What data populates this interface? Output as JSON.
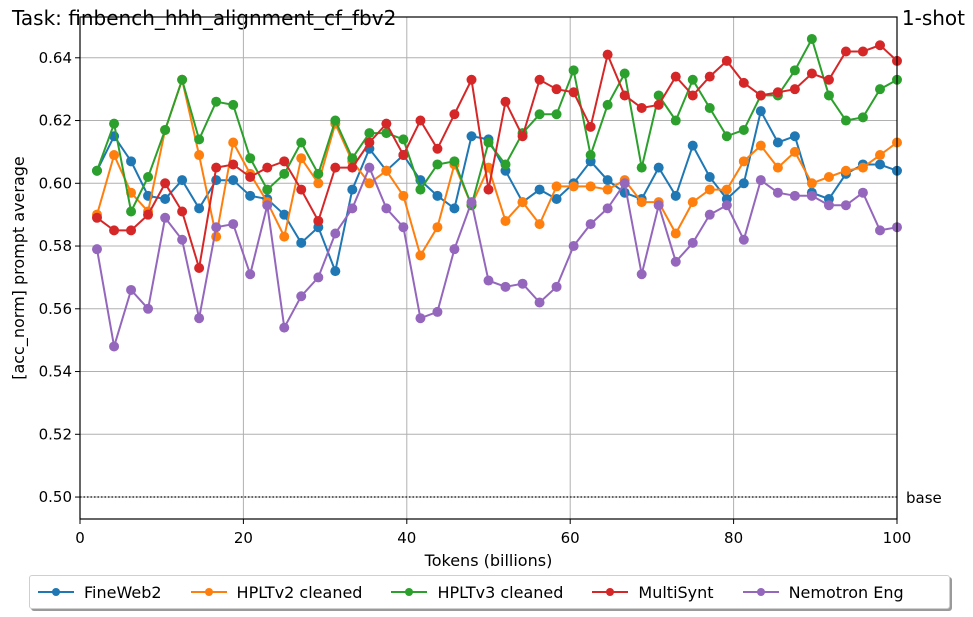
{
  "header": {
    "title": "Task: finbench_hhh_alignment_cf_fbv2",
    "shot_label": "1-shot"
  },
  "chart_data": {
    "type": "line",
    "title": "Task: finbench_hhh_alignment_cf_fbv2",
    "subtitle": "1-shot",
    "xlabel": "Tokens (billions)",
    "ylabel": "[acc_norm] prompt average",
    "xlim": [
      0,
      100
    ],
    "ylim": [
      0.493,
      0.653
    ],
    "xticks": [
      0,
      20,
      40,
      60,
      80,
      100
    ],
    "yticks": [
      0.5,
      0.52,
      0.54,
      0.56,
      0.58,
      0.6,
      0.62,
      0.64
    ],
    "xtick_labels": [
      "0",
      "20",
      "40",
      "60",
      "80",
      "100"
    ],
    "ytick_labels": [
      "0.50",
      "0.52",
      "0.54",
      "0.56",
      "0.58",
      "0.60",
      "0.62",
      "0.64"
    ],
    "grid": true,
    "legend_position": "below",
    "baseline": {
      "value": 0.5,
      "label": "base",
      "style": "dotted",
      "color": "#333333"
    },
    "x": [
      2.08,
      4.17,
      6.25,
      8.33,
      10.42,
      12.5,
      14.58,
      16.67,
      18.75,
      20.83,
      22.92,
      25.0,
      27.08,
      29.17,
      31.25,
      33.33,
      35.42,
      37.5,
      39.58,
      41.67,
      43.75,
      45.83,
      47.92,
      50.0,
      52.08,
      54.17,
      56.25,
      58.33,
      60.42,
      62.5,
      64.58,
      66.67,
      68.75,
      70.83,
      72.92,
      75.0,
      77.08,
      79.17,
      81.25,
      83.33,
      85.42,
      87.5,
      89.58,
      91.67,
      93.75,
      95.83,
      97.92,
      100.0
    ],
    "series": [
      {
        "name": "FineWeb2",
        "color": "#1f77b4",
        "values": [
          0.604,
          0.615,
          0.607,
          0.596,
          0.595,
          0.601,
          0.592,
          0.601,
          0.601,
          0.596,
          0.595,
          0.59,
          0.581,
          0.586,
          0.572,
          0.598,
          0.611,
          0.604,
          0.609,
          0.601,
          0.596,
          0.592,
          0.615,
          0.614,
          0.604,
          0.594,
          0.598,
          0.595,
          0.6,
          0.607,
          0.601,
          0.597,
          0.595,
          0.605,
          0.596,
          0.612,
          0.602,
          0.595,
          0.6,
          0.623,
          0.613,
          0.615,
          0.597,
          0.595,
          0.603,
          0.606,
          0.606,
          0.604
        ]
      },
      {
        "name": "HPLTv2 cleaned",
        "color": "#ff7f0e",
        "values": [
          0.59,
          0.609,
          0.597,
          0.591,
          0.617,
          0.633,
          0.609,
          0.583,
          0.613,
          0.603,
          0.594,
          0.583,
          0.608,
          0.6,
          0.619,
          0.607,
          0.6,
          0.604,
          0.596,
          0.577,
          0.586,
          0.606,
          0.593,
          0.605,
          0.588,
          0.594,
          0.587,
          0.599,
          0.599,
          0.599,
          0.598,
          0.601,
          0.594,
          0.594,
          0.584,
          0.594,
          0.598,
          0.598,
          0.607,
          0.612,
          0.605,
          0.61,
          0.6,
          0.602,
          0.604,
          0.605,
          0.609,
          0.613
        ]
      },
      {
        "name": "HPLTv3 cleaned",
        "color": "#2ca02c",
        "values": [
          0.604,
          0.619,
          0.591,
          0.602,
          0.617,
          0.633,
          0.614,
          0.626,
          0.625,
          0.608,
          0.598,
          0.603,
          0.613,
          0.603,
          0.62,
          0.608,
          0.616,
          0.616,
          0.614,
          0.598,
          0.606,
          0.607,
          0.593,
          0.613,
          0.606,
          0.616,
          0.622,
          0.622,
          0.636,
          0.609,
          0.625,
          0.635,
          0.605,
          0.628,
          0.62,
          0.633,
          0.624,
          0.615,
          0.617,
          0.628,
          0.628,
          0.636,
          0.646,
          0.628,
          0.62,
          0.621,
          0.63,
          0.633
        ]
      },
      {
        "name": "MultiSynt",
        "color": "#d62728",
        "values": [
          0.589,
          0.585,
          0.585,
          0.59,
          0.6,
          0.591,
          0.573,
          0.605,
          0.606,
          0.602,
          0.605,
          0.607,
          0.598,
          0.588,
          0.605,
          0.605,
          0.613,
          0.619,
          0.609,
          0.62,
          0.611,
          0.622,
          0.633,
          0.598,
          0.626,
          0.615,
          0.633,
          0.63,
          0.629,
          0.618,
          0.641,
          0.628,
          0.624,
          0.625,
          0.634,
          0.628,
          0.634,
          0.639,
          0.632,
          0.628,
          0.629,
          0.63,
          0.635,
          0.633,
          0.642,
          0.642,
          0.644,
          0.639
        ]
      },
      {
        "name": "Nemotron Eng",
        "color": "#9467bd",
        "values": [
          0.579,
          0.548,
          0.566,
          0.56,
          0.589,
          0.582,
          0.557,
          0.586,
          0.587,
          0.571,
          0.593,
          0.554,
          0.564,
          0.57,
          0.584,
          0.592,
          0.605,
          0.592,
          0.586,
          0.557,
          0.559,
          0.579,
          0.594,
          0.569,
          0.567,
          0.568,
          0.562,
          0.567,
          0.58,
          0.587,
          0.592,
          0.6,
          0.571,
          0.593,
          0.575,
          0.581,
          0.59,
          0.593,
          0.582,
          0.601,
          0.597,
          0.596,
          0.596,
          0.593,
          0.593,
          0.597,
          0.585,
          0.586
        ]
      }
    ]
  },
  "legend": {
    "items": [
      {
        "label": "FineWeb2",
        "color": "#1f77b4"
      },
      {
        "label": "HPLTv2 cleaned",
        "color": "#ff7f0e"
      },
      {
        "label": "HPLTv3 cleaned",
        "color": "#2ca02c"
      },
      {
        "label": "MultiSynt",
        "color": "#d62728"
      },
      {
        "label": "Nemotron Eng",
        "color": "#9467bd"
      }
    ]
  }
}
